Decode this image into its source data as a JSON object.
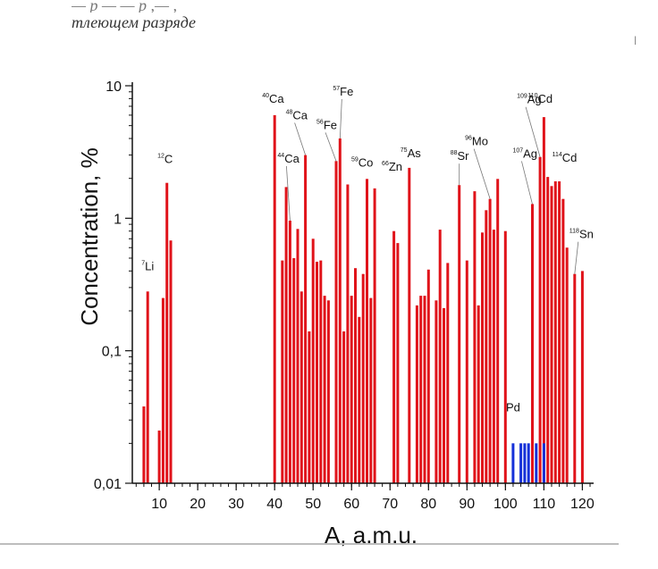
{
  "caption": {
    "top_line": "— p — — p ,— ,",
    "second_line": "тлеющем разряде"
  },
  "chart_data": {
    "type": "bar",
    "ylabel": "Concentration, %",
    "xlabel": "A, a.m.u.",
    "xlim": [
      3,
      122
    ],
    "xticks": [
      10,
      20,
      30,
      40,
      50,
      60,
      70,
      80,
      90,
      100,
      110,
      120
    ],
    "yscale": "log",
    "ylim": [
      0.01,
      10
    ],
    "yticks": [
      {
        "value": 0.01,
        "label": "0,01"
      },
      {
        "value": 0.1,
        "label": "0,1"
      },
      {
        "value": 1,
        "label": "1"
      },
      {
        "value": 10,
        "label": "10"
      }
    ],
    "series": [
      {
        "color": "#e0131a",
        "points": [
          {
            "x": 6,
            "y": 0.038
          },
          {
            "x": 7,
            "y": 0.28
          },
          {
            "x": 10,
            "y": 0.025
          },
          {
            "x": 11,
            "y": 0.25
          },
          {
            "x": 12,
            "y": 1.85
          },
          {
            "x": 13,
            "y": 0.68
          },
          {
            "x": 40,
            "y": 6.0
          },
          {
            "x": 42,
            "y": 0.48
          },
          {
            "x": 43,
            "y": 1.72
          },
          {
            "x": 44,
            "y": 0.96
          },
          {
            "x": 45,
            "y": 0.5
          },
          {
            "x": 46,
            "y": 0.83
          },
          {
            "x": 47,
            "y": 0.28
          },
          {
            "x": 48,
            "y": 3.0
          },
          {
            "x": 49,
            "y": 0.14
          },
          {
            "x": 50,
            "y": 0.7
          },
          {
            "x": 51,
            "y": 0.47
          },
          {
            "x": 52,
            "y": 0.48
          },
          {
            "x": 53,
            "y": 0.26
          },
          {
            "x": 54,
            "y": 0.24
          },
          {
            "x": 56,
            "y": 2.7
          },
          {
            "x": 57,
            "y": 4.0
          },
          {
            "x": 58,
            "y": 0.14
          },
          {
            "x": 59,
            "y": 1.8
          },
          {
            "x": 60,
            "y": 0.26
          },
          {
            "x": 61,
            "y": 0.42
          },
          {
            "x": 62,
            "y": 0.18
          },
          {
            "x": 63,
            "y": 0.38
          },
          {
            "x": 64,
            "y": 1.98
          },
          {
            "x": 65,
            "y": 0.25
          },
          {
            "x": 66,
            "y": 1.68
          },
          {
            "x": 71,
            "y": 0.8
          },
          {
            "x": 72,
            "y": 0.65
          },
          {
            "x": 75,
            "y": 2.4
          },
          {
            "x": 77,
            "y": 0.22
          },
          {
            "x": 78,
            "y": 0.26
          },
          {
            "x": 79,
            "y": 0.26
          },
          {
            "x": 80,
            "y": 0.41
          },
          {
            "x": 82,
            "y": 0.24
          },
          {
            "x": 83,
            "y": 0.82
          },
          {
            "x": 84,
            "y": 0.21
          },
          {
            "x": 85,
            "y": 0.46
          },
          {
            "x": 88,
            "y": 1.78
          },
          {
            "x": 90,
            "y": 0.48
          },
          {
            "x": 92,
            "y": 1.6
          },
          {
            "x": 93,
            "y": 0.22
          },
          {
            "x": 94,
            "y": 0.78
          },
          {
            "x": 95,
            "y": 1.15
          },
          {
            "x": 96,
            "y": 1.4
          },
          {
            "x": 97,
            "y": 0.82
          },
          {
            "x": 98,
            "y": 1.98
          },
          {
            "x": 100,
            "y": 0.8
          },
          {
            "x": 107,
            "y": 1.28
          },
          {
            "x": 109,
            "y": 2.9
          },
          {
            "x": 110,
            "y": 5.8
          },
          {
            "x": 111,
            "y": 2.05
          },
          {
            "x": 112,
            "y": 1.75
          },
          {
            "x": 113,
            "y": 1.9
          },
          {
            "x": 114,
            "y": 1.9
          },
          {
            "x": 115,
            "y": 1.4
          },
          {
            "x": 116,
            "y": 0.6
          },
          {
            "x": 118,
            "y": 0.38
          },
          {
            "x": 120,
            "y": 0.4
          }
        ]
      },
      {
        "color": "#1530d8",
        "points": [
          {
            "x": 102,
            "y": 0.02
          },
          {
            "x": 104,
            "y": 0.02
          },
          {
            "x": 105,
            "y": 0.02
          },
          {
            "x": 106,
            "y": 0.02
          },
          {
            "x": 108,
            "y": 0.02
          },
          {
            "x": 110,
            "y": 0.02
          }
        ]
      }
    ],
    "annotations": [
      {
        "mass": "7",
        "el": "Li",
        "x": 7,
        "y": 0.28
      },
      {
        "mass": "12",
        "el": "C",
        "x": 12,
        "y": 1.85
      },
      {
        "mass": "40",
        "el": "Ca",
        "x": 40,
        "y": 6.0
      },
      {
        "mass": "44",
        "el": "Ca",
        "x": 44,
        "y": 0.96
      },
      {
        "mass": "48",
        "el": "Ca",
        "x": 48,
        "y": 3.0
      },
      {
        "mass": "56",
        "el": "Fe",
        "x": 56,
        "y": 2.7
      },
      {
        "mass": "57",
        "el": "Fe",
        "x": 57,
        "y": 4.0
      },
      {
        "mass": "59",
        "el": "Co",
        "x": 59,
        "y": 1.8
      },
      {
        "mass": "66",
        "el": "Zn",
        "x": 66,
        "y": 1.68
      },
      {
        "mass": "75",
        "el": "As",
        "x": 75,
        "y": 2.4
      },
      {
        "mass": "88",
        "el": "Sr",
        "x": 88,
        "y": 1.78
      },
      {
        "mass": "96",
        "el": "Mo",
        "x": 96,
        "y": 1.4
      },
      {
        "mass": "107",
        "el": "Ag",
        "x": 107,
        "y": 1.28
      },
      {
        "mass": "109",
        "el": "Ag",
        "x": 109,
        "y": 2.9
      },
      {
        "mass": "110",
        "el": "Cd",
        "x": 110,
        "y": 5.8
      },
      {
        "mass": "114",
        "el": "Cd",
        "x": 114,
        "y": 1.9
      },
      {
        "mass": "118",
        "el": "Sn",
        "x": 118,
        "y": 0.38
      },
      {
        "mass": "",
        "el": "Pd",
        "x": 102,
        "y": 0.02
      }
    ]
  }
}
